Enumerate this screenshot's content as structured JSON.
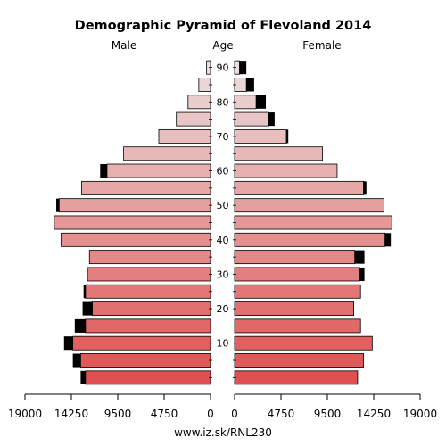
{
  "chart_data": {
    "type": "bar",
    "title": "Demographic Pyramid of Flevoland 2014",
    "left_label": "Male",
    "center_label": "Age",
    "right_label": "Female",
    "credit": "www.iz.sk/RNL230",
    "x_tick_labels": [
      "19000",
      "14250",
      "9500",
      "4750",
      "0"
    ],
    "x_tick_values": [
      19000,
      14250,
      9500,
      4750,
      0
    ],
    "xlim": [
      0,
      19000
    ],
    "age_ticks": [
      10,
      20,
      30,
      40,
      50,
      60,
      70,
      80,
      90
    ],
    "age_groups": [
      "0-4",
      "5-9",
      "10-14",
      "15-19",
      "20-24",
      "25-29",
      "30-34",
      "35-39",
      "40-44",
      "45-49",
      "50-54",
      "55-59",
      "60-64",
      "65-69",
      "70-74",
      "75-79",
      "80-84",
      "85-89",
      "90-94"
    ],
    "series": [
      {
        "name": "Male",
        "values": [
          12800,
          13300,
          14100,
          12800,
          12100,
          12800,
          12600,
          12400,
          15300,
          16000,
          15500,
          13200,
          10600,
          8900,
          5300,
          3500,
          2300,
          1200,
          400
        ],
        "black_values": [
          500,
          800,
          900,
          1100,
          1000,
          200,
          0,
          0,
          0,
          0,
          300,
          0,
          700,
          0,
          0,
          0,
          0,
          0,
          0
        ]
      },
      {
        "name": "Female",
        "values": [
          12600,
          13200,
          14100,
          12900,
          12200,
          12900,
          12800,
          12300,
          15400,
          16100,
          15300,
          13200,
          10500,
          9000,
          5300,
          3500,
          2200,
          1200,
          500
        ],
        "black_values": [
          0,
          0,
          0,
          0,
          0,
          0,
          500,
          1000,
          600,
          0,
          0,
          300,
          0,
          0,
          200,
          600,
          1000,
          800,
          700
        ]
      }
    ],
    "colors": {
      "young": "#e05050",
      "old": "#ebdede",
      "surplus": "#000000",
      "bar_stroke": "#000000"
    }
  }
}
